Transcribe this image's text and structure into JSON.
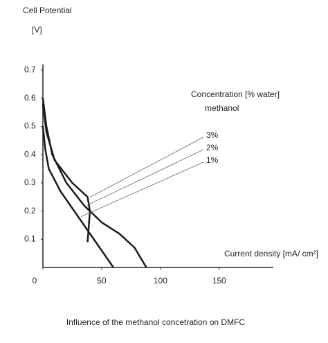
{
  "chart_data": {
    "type": "line",
    "y_label": [
      "Cell Potential",
      "[V]"
    ],
    "x_label": "Current density [mA/ cm²]",
    "annotation": [
      "Concentration [% water]",
      "methanol"
    ],
    "caption": "Influence of the methanol concetration on DMFC",
    "series": [
      {
        "name": "3%",
        "color": "#1a1a1a",
        "x": [
          0,
          3,
          10,
          25,
          38,
          40,
          38
        ],
        "values": [
          0.58,
          0.48,
          0.38,
          0.3,
          0.25,
          0.2,
          0.09
        ]
      },
      {
        "name": "2%",
        "color": "#1a1a1a",
        "x": [
          0,
          3,
          8,
          20,
          35,
          50,
          65,
          78,
          88
        ],
        "values": [
          0.6,
          0.5,
          0.4,
          0.3,
          0.22,
          0.16,
          0.12,
          0.07,
          0
        ]
      },
      {
        "name": "1%",
        "color": "#1a1a1a",
        "x": [
          0,
          2,
          5,
          15,
          30,
          45,
          55,
          60
        ],
        "values": [
          0.5,
          0.42,
          0.35,
          0.27,
          0.18,
          0.09,
          0.03,
          0
        ]
      }
    ],
    "xlim": [
      0,
      196
    ],
    "ylim": [
      0,
      0.72
    ],
    "xticks": [
      0,
      50,
      100,
      150
    ],
    "yticks": [
      0.1,
      0.2,
      0.3,
      0.4,
      0.5,
      0.6,
      0.7
    ],
    "grid": false
  }
}
